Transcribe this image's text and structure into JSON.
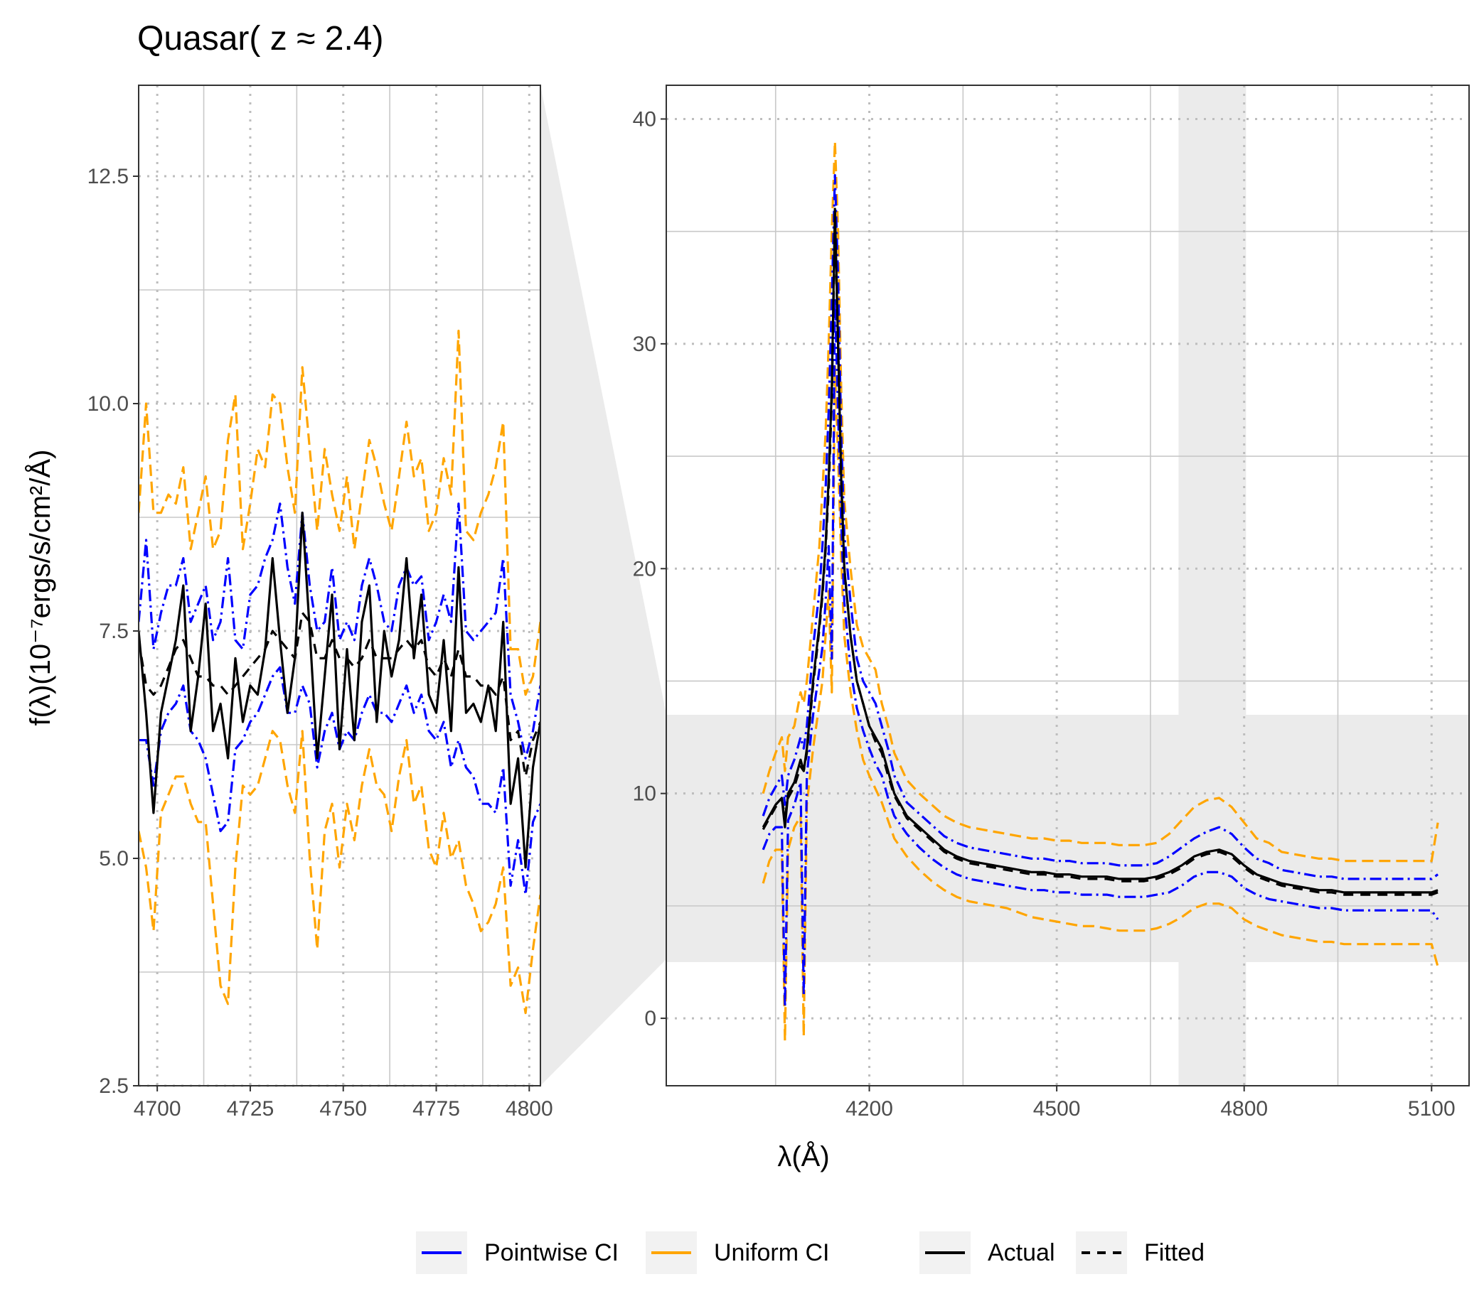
{
  "title": "Quasar( z ≈ 2.4)",
  "ylabel": "f(λ)(10⁻⁷ergs/s/cm²/Å)",
  "xlabel": "λ(Å)",
  "legend": {
    "items": [
      {
        "label": "Pointwise CI",
        "color": "#0000ff",
        "dash": "solid"
      },
      {
        "label": "Uniform CI",
        "color": "#ffa500",
        "dash": "solid"
      },
      {
        "label": "Actual",
        "color": "#000000",
        "dash": "solid"
      },
      {
        "label": "Fitted",
        "color": "#000000",
        "dash": "dashed"
      }
    ]
  },
  "colors": {
    "actual": "#000000",
    "fitted": "#000000",
    "pointwise": "#0000ff",
    "uniform": "#ffa500",
    "highlight": "#ebebeb",
    "grid": "#c8c8c8"
  },
  "chart_data": [
    {
      "type": "line",
      "panel": "zoom",
      "xlim": [
        4695,
        4803
      ],
      "ylim": [
        2.5,
        13.5
      ],
      "x_ticks": [
        4700,
        4725,
        4750,
        4775,
        4800
      ],
      "x_tick_labels": [
        "4700",
        "4725",
        "4750",
        "4775",
        "4800"
      ],
      "y_ticks": [
        2.5,
        5.0,
        7.5,
        10.0,
        12.5
      ],
      "y_tick_labels": [
        "2.5",
        "5.0",
        "7.5",
        "10.0",
        "12.5"
      ],
      "x": [
        4695,
        4697,
        4699,
        4701,
        4703,
        4705,
        4707,
        4709,
        4711,
        4713,
        4715,
        4717,
        4719,
        4721,
        4723,
        4725,
        4727,
        4729,
        4731,
        4733,
        4735,
        4737,
        4739,
        4741,
        4743,
        4745,
        4747,
        4749,
        4751,
        4753,
        4755,
        4757,
        4759,
        4761,
        4763,
        4765,
        4767,
        4769,
        4771,
        4773,
        4775,
        4777,
        4779,
        4781,
        4783,
        4785,
        4787,
        4789,
        4791,
        4793,
        4795,
        4797,
        4799,
        4801,
        4803
      ],
      "series": [
        {
          "name": "Actual",
          "values": [
            7.5,
            6.6,
            5.5,
            6.6,
            7.0,
            7.4,
            8.0,
            6.4,
            7.0,
            7.8,
            6.4,
            6.7,
            6.1,
            7.2,
            6.5,
            6.9,
            6.8,
            7.3,
            8.3,
            7.4,
            6.6,
            7.2,
            8.8,
            7.5,
            6.1,
            7.0,
            7.9,
            6.2,
            7.3,
            6.3,
            7.6,
            8.0,
            6.5,
            7.5,
            7.0,
            7.4,
            8.3,
            7.2,
            7.9,
            6.8,
            6.6,
            7.4,
            6.4,
            8.2,
            6.6,
            6.7,
            6.5,
            6.9,
            6.4,
            7.6,
            5.6,
            6.1,
            4.9,
            6.0,
            6.5
          ]
        },
        {
          "name": "Fitted",
          "values": [
            7.4,
            6.9,
            6.8,
            6.9,
            7.1,
            7.3,
            7.4,
            7.2,
            7.0,
            7.0,
            6.9,
            6.9,
            6.8,
            6.9,
            7.0,
            7.1,
            7.2,
            7.3,
            7.5,
            7.4,
            7.3,
            7.2,
            7.7,
            7.6,
            7.2,
            7.2,
            7.4,
            7.2,
            7.2,
            7.1,
            7.2,
            7.4,
            7.2,
            7.2,
            7.2,
            7.3,
            7.4,
            7.3,
            7.4,
            7.1,
            7.0,
            7.2,
            7.0,
            7.3,
            7.0,
            7.0,
            6.9,
            6.9,
            6.8,
            7.0,
            6.3,
            6.4,
            5.9,
            6.3,
            6.5
          ]
        },
        {
          "name": "Pointwise upper",
          "values": [
            7.6,
            8.5,
            7.3,
            7.7,
            8.0,
            8.0,
            8.3,
            7.6,
            7.8,
            8.0,
            7.4,
            7.6,
            8.3,
            7.4,
            7.3,
            7.9,
            8.0,
            8.3,
            8.5,
            8.9,
            8.2,
            7.8,
            8.8,
            8.0,
            7.5,
            7.6,
            8.2,
            7.4,
            7.6,
            7.4,
            8.0,
            8.3,
            8.0,
            7.6,
            7.5,
            8.0,
            8.2,
            8.0,
            8.1,
            7.4,
            7.6,
            7.9,
            7.6,
            8.9,
            7.5,
            7.4,
            7.5,
            7.6,
            7.7,
            8.3,
            6.8,
            6.5,
            6.1,
            6.4,
            6.9
          ]
        },
        {
          "name": "Pointwise lower",
          "values": [
            6.3,
            6.3,
            5.8,
            6.4,
            6.6,
            6.7,
            6.9,
            6.4,
            6.3,
            6.1,
            5.7,
            5.3,
            5.4,
            6.2,
            6.3,
            6.5,
            6.6,
            6.8,
            7.0,
            7.1,
            6.6,
            6.6,
            6.9,
            6.7,
            6.0,
            6.4,
            6.6,
            6.2,
            6.4,
            6.3,
            6.6,
            6.8,
            6.6,
            6.6,
            6.5,
            6.7,
            6.9,
            6.6,
            6.8,
            6.4,
            6.3,
            6.5,
            6.0,
            6.3,
            6.0,
            5.9,
            5.6,
            5.6,
            5.5,
            6.0,
            4.7,
            5.2,
            4.6,
            5.4,
            5.6
          ]
        },
        {
          "name": "Uniform upper",
          "values": [
            8.8,
            10.0,
            8.8,
            8.8,
            9.0,
            8.9,
            9.3,
            8.4,
            8.8,
            9.2,
            8.4,
            8.6,
            9.6,
            10.1,
            8.4,
            8.9,
            9.5,
            9.3,
            10.1,
            10.0,
            9.3,
            8.8,
            10.4,
            9.5,
            8.6,
            9.5,
            9.0,
            8.6,
            9.2,
            8.4,
            9.0,
            9.6,
            9.3,
            8.9,
            8.6,
            9.2,
            9.8,
            9.2,
            9.4,
            8.6,
            8.8,
            9.4,
            9.0,
            10.8,
            8.6,
            8.5,
            8.8,
            9.0,
            9.3,
            9.8,
            7.3,
            7.3,
            6.8,
            7.0,
            7.6
          ]
        },
        {
          "name": "Uniform lower",
          "values": [
            5.3,
            4.9,
            4.2,
            5.5,
            5.7,
            5.9,
            5.9,
            5.6,
            5.4,
            5.4,
            4.5,
            3.6,
            3.4,
            4.9,
            5.8,
            5.7,
            5.8,
            6.1,
            6.4,
            6.3,
            5.8,
            5.5,
            6.4,
            5.0,
            4.0,
            5.3,
            5.6,
            4.9,
            5.6,
            5.2,
            5.8,
            6.2,
            5.8,
            5.7,
            5.3,
            5.9,
            6.3,
            5.6,
            5.8,
            5.1,
            4.9,
            5.5,
            5.0,
            5.2,
            4.7,
            4.5,
            4.2,
            4.3,
            4.5,
            4.9,
            3.6,
            3.8,
            3.3,
            4.0,
            4.6
          ]
        }
      ]
    },
    {
      "type": "line",
      "panel": "full",
      "xlim": [
        3875,
        5160
      ],
      "ylim": [
        -3,
        41.5
      ],
      "x_ticks": [
        4200,
        4500,
        4800,
        5100
      ],
      "x_tick_labels": [
        "4200",
        "4500",
        "4800",
        "5100"
      ],
      "y_ticks": [
        0,
        10,
        20,
        30,
        40
      ],
      "y_tick_labels": [
        "0",
        "10",
        "20",
        "30",
        "40"
      ],
      "highlight_y": [
        2.5,
        13.5
      ],
      "highlight_x": [
        4695,
        4803
      ],
      "x": [
        4030,
        4040,
        4050,
        4060,
        4065,
        4070,
        4080,
        4090,
        4095,
        4100,
        4110,
        4120,
        4125,
        4130,
        4135,
        4140,
        4145,
        4150,
        4155,
        4160,
        4170,
        4180,
        4190,
        4200,
        4210,
        4220,
        4230,
        4240,
        4250,
        4260,
        4280,
        4300,
        4320,
        4340,
        4360,
        4380,
        4400,
        4420,
        4440,
        4460,
        4480,
        4500,
        4520,
        4540,
        4560,
        4580,
        4600,
        4620,
        4640,
        4660,
        4680,
        4700,
        4720,
        4740,
        4760,
        4780,
        4800,
        4820,
        4840,
        4860,
        4880,
        4900,
        4920,
        4940,
        4960,
        4980,
        5000,
        5020,
        5040,
        5060,
        5080,
        5100,
        5110
      ],
      "series": [
        {
          "name": "Actual",
          "values": [
            8.5,
            9.0,
            9.5,
            9.8,
            8.5,
            10.0,
            10.5,
            11.5,
            11.0,
            12.0,
            15.0,
            17.5,
            19.0,
            21.0,
            24.0,
            28.0,
            36.0,
            30.0,
            24.0,
            20.0,
            17.0,
            15.0,
            14.0,
            13.0,
            12.5,
            12.0,
            11.0,
            10.0,
            9.5,
            9.0,
            8.5,
            8.0,
            7.5,
            7.2,
            7.0,
            6.9,
            6.8,
            6.7,
            6.6,
            6.5,
            6.5,
            6.4,
            6.4,
            6.3,
            6.3,
            6.3,
            6.2,
            6.2,
            6.2,
            6.3,
            6.5,
            6.8,
            7.2,
            7.4,
            7.5,
            7.3,
            6.8,
            6.4,
            6.2,
            6.0,
            5.9,
            5.8,
            5.7,
            5.7,
            5.6,
            5.6,
            5.6,
            5.6,
            5.6,
            5.6,
            5.6,
            5.6,
            5.7
          ]
        },
        {
          "name": "Fitted",
          "values": [
            8.4,
            8.9,
            9.4,
            9.7,
            9.0,
            9.8,
            10.3,
            11.2,
            11.0,
            11.8,
            14.8,
            17.3,
            18.8,
            20.8,
            23.5,
            27.5,
            35.5,
            30.0,
            24.0,
            20.0,
            17.0,
            15.0,
            14.0,
            13.0,
            12.3,
            11.8,
            10.8,
            9.9,
            9.4,
            8.9,
            8.4,
            7.9,
            7.4,
            7.1,
            6.9,
            6.8,
            6.7,
            6.6,
            6.5,
            6.4,
            6.4,
            6.3,
            6.3,
            6.2,
            6.2,
            6.2,
            6.1,
            6.1,
            6.1,
            6.2,
            6.4,
            6.7,
            7.1,
            7.3,
            7.4,
            7.2,
            6.7,
            6.3,
            6.1,
            5.9,
            5.8,
            5.7,
            5.6,
            5.6,
            5.5,
            5.5,
            5.5,
            5.5,
            5.5,
            5.5,
            5.5,
            5.5,
            5.6
          ]
        },
        {
          "name": "Pointwise upper",
          "values": [
            9.0,
            9.8,
            10.3,
            10.8,
            9.5,
            10.8,
            11.5,
            12.5,
            12.0,
            13.0,
            16.5,
            19.0,
            21.0,
            23.5,
            27.0,
            32.0,
            37.5,
            33.0,
            26.0,
            21.5,
            18.5,
            16.0,
            15.0,
            14.5,
            14.0,
            13.0,
            12.0,
            10.8,
            10.2,
            9.6,
            9.1,
            8.6,
            8.1,
            7.8,
            7.6,
            7.5,
            7.4,
            7.3,
            7.2,
            7.1,
            7.1,
            7.0,
            7.0,
            6.9,
            6.9,
            6.9,
            6.8,
            6.8,
            6.8,
            6.9,
            7.2,
            7.6,
            8.0,
            8.3,
            8.5,
            8.2,
            7.6,
            7.1,
            6.9,
            6.6,
            6.5,
            6.4,
            6.3,
            6.3,
            6.2,
            6.2,
            6.2,
            6.2,
            6.2,
            6.2,
            6.2,
            6.2,
            6.4
          ]
        },
        {
          "name": "Pointwise lower",
          "values": [
            7.5,
            8.2,
            8.5,
            8.5,
            0.5,
            8.8,
            9.5,
            10.5,
            1.0,
            10.8,
            13.5,
            15.5,
            16.5,
            18.5,
            21.0,
            16.0,
            32.0,
            27.0,
            22.0,
            18.5,
            15.5,
            13.8,
            12.8,
            12.0,
            11.3,
            10.8,
            9.8,
            9.0,
            8.6,
            8.2,
            7.6,
            7.1,
            6.7,
            6.4,
            6.2,
            6.1,
            6.0,
            5.9,
            5.8,
            5.7,
            5.7,
            5.6,
            5.6,
            5.5,
            5.5,
            5.5,
            5.4,
            5.4,
            5.4,
            5.5,
            5.6,
            5.9,
            6.3,
            6.5,
            6.5,
            6.3,
            5.8,
            5.5,
            5.3,
            5.2,
            5.1,
            5.0,
            4.9,
            4.9,
            4.8,
            4.8,
            4.8,
            4.8,
            4.8,
            4.8,
            4.8,
            4.8,
            4.4
          ]
        },
        {
          "name": "Uniform upper",
          "values": [
            10.0,
            11.0,
            11.8,
            12.5,
            11.0,
            12.5,
            13.0,
            14.5,
            14.0,
            15.0,
            18.0,
            21.0,
            23.5,
            26.0,
            30.0,
            35.0,
            39.0,
            35.0,
            28.0,
            23.0,
            20.0,
            17.5,
            16.5,
            16.0,
            15.5,
            14.0,
            13.0,
            11.8,
            11.2,
            10.6,
            10.0,
            9.5,
            9.0,
            8.7,
            8.5,
            8.4,
            8.3,
            8.2,
            8.1,
            8.0,
            8.0,
            7.9,
            7.9,
            7.8,
            7.8,
            7.8,
            7.7,
            7.7,
            7.7,
            7.8,
            8.2,
            8.8,
            9.4,
            9.7,
            9.8,
            9.4,
            8.7,
            8.0,
            7.8,
            7.4,
            7.3,
            7.2,
            7.1,
            7.1,
            7.0,
            7.0,
            7.0,
            7.0,
            7.0,
            7.0,
            7.0,
            7.0,
            8.7
          ]
        },
        {
          "name": "Uniform lower",
          "values": [
            6.0,
            7.0,
            7.5,
            7.5,
            -1.0,
            7.5,
            8.5,
            9.0,
            -0.8,
            9.5,
            12.0,
            14.0,
            15.0,
            17.0,
            19.0,
            14.5,
            29.0,
            25.0,
            20.5,
            17.0,
            14.5,
            12.8,
            11.5,
            10.8,
            10.2,
            9.6,
            8.8,
            8.0,
            7.6,
            7.2,
            6.6,
            6.1,
            5.7,
            5.4,
            5.2,
            5.1,
            5.0,
            4.9,
            4.7,
            4.5,
            4.4,
            4.3,
            4.2,
            4.1,
            4.1,
            4.0,
            3.9,
            3.9,
            3.9,
            4.0,
            4.2,
            4.5,
            4.9,
            5.1,
            5.1,
            4.9,
            4.4,
            4.1,
            3.9,
            3.7,
            3.6,
            3.5,
            3.4,
            3.4,
            3.3,
            3.3,
            3.3,
            3.3,
            3.3,
            3.3,
            3.3,
            3.3,
            2.3
          ]
        }
      ]
    }
  ]
}
